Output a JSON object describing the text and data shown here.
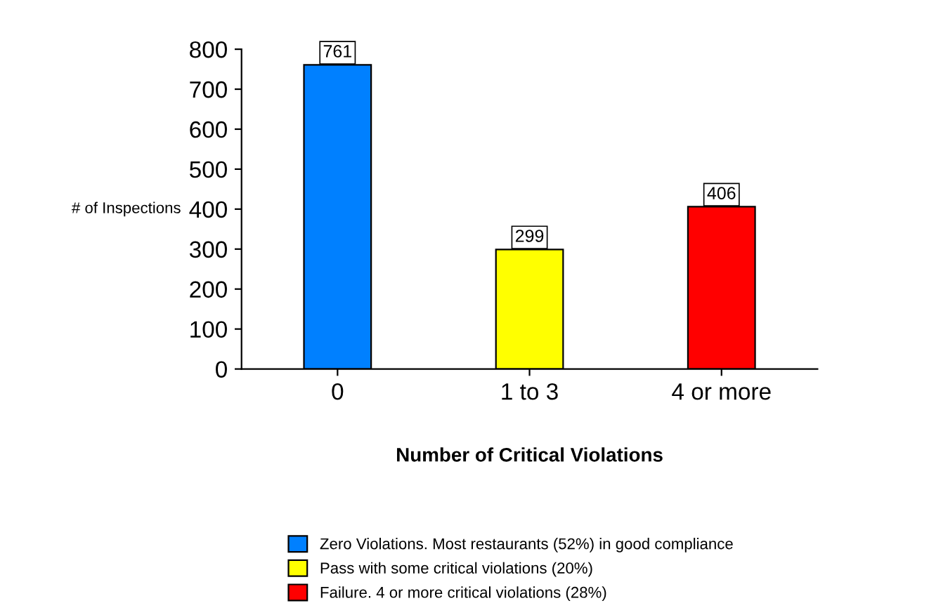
{
  "chart_data": {
    "type": "bar",
    "xlabel": "Number of Critical Violations",
    "ylabel": "# of Inspections",
    "categories": [
      "0",
      "1 to 3",
      "4 or more"
    ],
    "series": [
      {
        "name": "Zero Violations. Most restaurants (52%) in good compliance",
        "color": "#0080ff",
        "values": [
          761,
          null,
          null
        ]
      },
      {
        "name": "Pass with some critical violations (20%)",
        "color": "#ffff00",
        "values": [
          null,
          299,
          null
        ]
      },
      {
        "name": "Failure. 4 or more critical violations (28%)",
        "color": "#ff0000",
        "values": [
          null,
          null,
          406
        ]
      }
    ],
    "ylim": [
      0,
      800
    ],
    "yticks": [
      0,
      100,
      200,
      300,
      400,
      500,
      600,
      700,
      800
    ],
    "grid": false,
    "legend": "bottom",
    "data_labels": true
  }
}
